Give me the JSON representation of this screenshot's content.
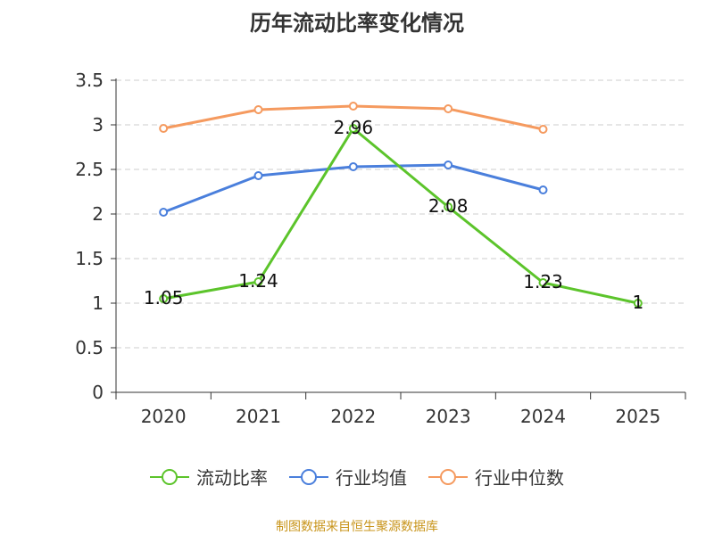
{
  "title": "历年流动比率变化情况",
  "source": "制图数据来自恒生聚源数据库",
  "chart_data": {
    "type": "line",
    "title": "历年流动比率变化情况",
    "categories": [
      "2020",
      "2021",
      "2022",
      "2023",
      "2024",
      "2025"
    ],
    "ylim": [
      0,
      3.5
    ],
    "yticks": [
      "0",
      "0.5",
      "1",
      "1.5",
      "2",
      "2.5",
      "3",
      "3.5"
    ],
    "grid": true,
    "legend_position": "bottom",
    "series": [
      {
        "name": "流动比率",
        "color": "#5cc42b",
        "values": [
          1.05,
          1.24,
          2.96,
          2.08,
          1.23,
          1
        ],
        "labels": [
          "1.05",
          "1.24",
          "2.96",
          "2.08",
          "1.23",
          "1"
        ]
      },
      {
        "name": "行业均值",
        "color": "#4a7fdc",
        "values": [
          2.02,
          2.43,
          2.53,
          2.55,
          2.27,
          null
        ]
      },
      {
        "name": "行业中位数",
        "color": "#f59a5f",
        "values": [
          2.96,
          3.17,
          3.21,
          3.18,
          2.95,
          null
        ]
      }
    ]
  }
}
